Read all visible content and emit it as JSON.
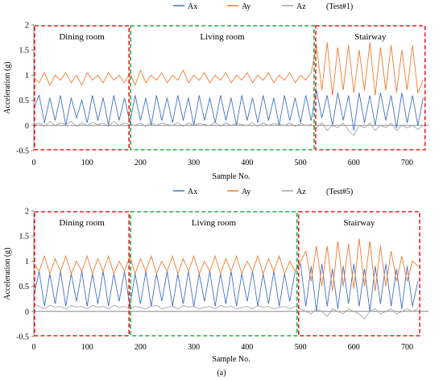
{
  "figure_label": "(a)",
  "colors": {
    "Ax": "#4472c4",
    "Ay": "#ed7d31",
    "Az": "#a5a5a5",
    "red_box": "#e02020",
    "green_box": "#2aa84a"
  },
  "chart_data": [
    {
      "type": "line",
      "title": "(Test#1)",
      "xlabel": "Sample No.",
      "ylabel": "Acceleration (g)",
      "xlim": [
        0,
        740
      ],
      "ylim": [
        -0.5,
        2
      ],
      "xticks": [
        0,
        100,
        200,
        300,
        400,
        500,
        600,
        700
      ],
      "yticks": [
        -0.5,
        0,
        0.5,
        1,
        1.5,
        2
      ],
      "yticklabels": [
        "-0.5",
        "0",
        "0.5",
        "1",
        "1.5",
        "2"
      ],
      "legend": [
        "Ax",
        "Ay",
        "Az"
      ],
      "legend_position": "top",
      "grid": false,
      "regions": [
        {
          "label": "Dining room",
          "x_start": 0,
          "x_end": 180,
          "color": "red"
        },
        {
          "label": "Living room",
          "x_start": 180,
          "x_end": 527,
          "color": "green"
        },
        {
          "label": "Stairway",
          "x_start": 527,
          "x_end": 735,
          "color": "red"
        }
      ],
      "series": [
        {
          "name": "Ax",
          "x": [
            0,
            10,
            20,
            30,
            40,
            50,
            60,
            70,
            80,
            90,
            100,
            110,
            120,
            130,
            140,
            150,
            160,
            170,
            180,
            190,
            200,
            210,
            220,
            230,
            240,
            250,
            260,
            270,
            280,
            290,
            300,
            310,
            320,
            330,
            340,
            350,
            360,
            370,
            380,
            390,
            400,
            410,
            420,
            430,
            440,
            450,
            460,
            470,
            480,
            490,
            500,
            510,
            520,
            530,
            540,
            550,
            560,
            570,
            580,
            590,
            600,
            610,
            620,
            630,
            640,
            650,
            660,
            670,
            680,
            690,
            700,
            710,
            720,
            730
          ],
          "values": [
            0.35,
            0.6,
            0.05,
            0.55,
            0.1,
            0.6,
            0.0,
            0.55,
            0.15,
            0.5,
            0.05,
            0.6,
            0.1,
            0.55,
            0.0,
            0.6,
            0.1,
            0.55,
            0.05,
            0.6,
            0.1,
            0.55,
            0.0,
            0.6,
            0.1,
            0.55,
            0.05,
            0.6,
            0.1,
            0.55,
            0.0,
            0.6,
            0.1,
            0.55,
            0.05,
            0.6,
            0.1,
            0.55,
            0.0,
            0.6,
            0.1,
            0.55,
            0.05,
            0.6,
            0.1,
            0.55,
            0.0,
            0.6,
            0.1,
            0.55,
            0.05,
            0.6,
            0.1,
            0.7,
            0.15,
            0.6,
            0.0,
            0.65,
            0.1,
            0.6,
            -0.1,
            0.65,
            0.05,
            0.6,
            0.0,
            0.65,
            0.1,
            0.6,
            -0.05,
            0.65,
            0.05,
            0.6,
            0.0,
            0.55
          ]
        },
        {
          "name": "Ay",
          "x": [
            0,
            10,
            20,
            30,
            40,
            50,
            60,
            70,
            80,
            90,
            100,
            110,
            120,
            130,
            140,
            150,
            160,
            170,
            180,
            190,
            200,
            210,
            220,
            230,
            240,
            250,
            260,
            270,
            280,
            290,
            300,
            310,
            320,
            330,
            340,
            350,
            360,
            370,
            380,
            390,
            400,
            410,
            420,
            430,
            440,
            450,
            460,
            470,
            480,
            490,
            500,
            510,
            520,
            530,
            540,
            550,
            560,
            570,
            580,
            590,
            600,
            610,
            620,
            630,
            640,
            650,
            660,
            670,
            680,
            690,
            700,
            710,
            720,
            730
          ],
          "values": [
            0.95,
            0.85,
            1.05,
            0.8,
            1.0,
            0.9,
            1.05,
            0.85,
            1.0,
            0.8,
            1.05,
            0.9,
            1.0,
            0.85,
            1.05,
            0.9,
            1.0,
            0.85,
            1.05,
            0.8,
            1.1,
            0.85,
            1.0,
            0.9,
            1.05,
            0.85,
            1.0,
            0.9,
            1.1,
            0.85,
            1.0,
            0.9,
            1.05,
            0.85,
            1.0,
            0.9,
            1.05,
            0.85,
            1.0,
            0.9,
            1.05,
            0.85,
            1.0,
            0.9,
            1.05,
            0.85,
            1.0,
            0.9,
            1.05,
            0.85,
            1.0,
            0.9,
            1.05,
            1.6,
            0.7,
            1.65,
            0.6,
            1.55,
            0.7,
            1.6,
            0.65,
            1.5,
            0.7,
            1.65,
            0.6,
            1.55,
            0.7,
            1.6,
            0.65,
            1.5,
            0.7,
            1.6,
            0.65,
            0.9
          ]
        },
        {
          "name": "Az",
          "x": [
            0,
            10,
            20,
            30,
            40,
            50,
            60,
            70,
            80,
            90,
            100,
            110,
            120,
            130,
            140,
            150,
            160,
            170,
            180,
            190,
            200,
            210,
            220,
            230,
            240,
            250,
            260,
            270,
            280,
            290,
            300,
            310,
            320,
            330,
            340,
            350,
            360,
            370,
            380,
            390,
            400,
            410,
            420,
            430,
            440,
            450,
            460,
            470,
            480,
            490,
            500,
            510,
            520,
            530,
            540,
            550,
            560,
            570,
            580,
            590,
            600,
            610,
            620,
            630,
            640,
            650,
            660,
            670,
            680,
            690,
            700,
            710,
            720,
            730
          ],
          "values": [
            0.0,
            0.05,
            -0.02,
            0.08,
            0.0,
            0.05,
            0.02,
            0.08,
            -0.02,
            0.05,
            0.0,
            0.06,
            0.02,
            0.05,
            -0.02,
            0.08,
            0.0,
            0.05,
            0.02,
            0.0,
            0.05,
            -0.02,
            0.06,
            0.0,
            0.05,
            0.02,
            0.0,
            0.06,
            -0.02,
            0.05,
            0.0,
            0.04,
            0.02,
            0.0,
            0.06,
            -0.02,
            0.05,
            0.0,
            0.04,
            0.02,
            0.0,
            0.06,
            -0.02,
            0.05,
            0.0,
            0.04,
            0.02,
            0.0,
            0.05,
            -0.02,
            0.04,
            0.0,
            0.02,
            -0.05,
            0.05,
            -0.1,
            0.0,
            -0.05,
            0.05,
            -0.1,
            -0.2,
            0.0,
            -0.05,
            0.05,
            -0.1,
            0.0,
            -0.05,
            0.05,
            -0.1,
            0.0,
            -0.05,
            0.0,
            -0.08,
            0.0
          ]
        }
      ]
    },
    {
      "type": "line",
      "title": "(Test#5)",
      "xlabel": "Sample No.",
      "ylabel": "Acceleration (g)",
      "xlim": [
        0,
        740
      ],
      "ylim": [
        -0.5,
        2
      ],
      "xticks": [
        0,
        100,
        200,
        300,
        400,
        500,
        600,
        700
      ],
      "yticks": [
        -0.5,
        0,
        0.5,
        1,
        1.5,
        2
      ],
      "yticklabels": [
        "-0.5",
        "0",
        "0.5",
        "1",
        "1.5",
        "2"
      ],
      "legend": [
        "Ax",
        "Ay",
        "Az"
      ],
      "legend_position": "top",
      "grid": false,
      "regions": [
        {
          "label": "Dining room",
          "x_start": 0,
          "x_end": 180,
          "color": "red"
        },
        {
          "label": "Living room",
          "x_start": 180,
          "x_end": 495,
          "color": "green"
        },
        {
          "label": "Stairway",
          "x_start": 495,
          "x_end": 725,
          "color": "red"
        }
      ],
      "series": [
        {
          "name": "Ax",
          "x": [
            0,
            10,
            20,
            30,
            40,
            50,
            60,
            70,
            80,
            90,
            100,
            110,
            120,
            130,
            140,
            150,
            160,
            170,
            180,
            190,
            200,
            210,
            220,
            230,
            240,
            250,
            260,
            270,
            280,
            290,
            300,
            310,
            320,
            330,
            340,
            350,
            360,
            370,
            380,
            390,
            400,
            410,
            420,
            430,
            440,
            450,
            460,
            470,
            480,
            490,
            500,
            510,
            520,
            530,
            540,
            550,
            560,
            570,
            580,
            590,
            600,
            610,
            620,
            630,
            640,
            650,
            660,
            670,
            680,
            690,
            700,
            710,
            720
          ],
          "values": [
            0.3,
            0.8,
            0.1,
            0.75,
            0.15,
            0.8,
            0.1,
            0.75,
            0.2,
            0.8,
            0.1,
            0.75,
            0.15,
            0.8,
            0.1,
            0.75,
            0.2,
            0.8,
            0.1,
            0.75,
            0.15,
            0.8,
            0.1,
            0.75,
            0.2,
            0.8,
            0.1,
            0.75,
            0.15,
            0.8,
            0.1,
            0.75,
            0.2,
            0.8,
            0.1,
            0.75,
            0.15,
            0.8,
            0.1,
            0.75,
            0.2,
            0.8,
            0.1,
            0.75,
            0.15,
            0.8,
            0.1,
            0.75,
            0.2,
            0.8,
            0.95,
            0.1,
            0.9,
            0.0,
            0.95,
            0.1,
            0.85,
            0.05,
            0.9,
            0.15,
            0.95,
            0.1,
            0.85,
            0.0,
            0.9,
            0.15,
            0.95,
            0.1,
            0.85,
            0.05,
            0.9,
            0.1,
            0.6
          ]
        },
        {
          "name": "Ay",
          "x": [
            0,
            10,
            20,
            30,
            40,
            50,
            60,
            70,
            80,
            90,
            100,
            110,
            120,
            130,
            140,
            150,
            160,
            170,
            180,
            190,
            200,
            210,
            220,
            230,
            240,
            250,
            260,
            270,
            280,
            290,
            300,
            310,
            320,
            330,
            340,
            350,
            360,
            370,
            380,
            390,
            400,
            410,
            420,
            430,
            440,
            450,
            460,
            470,
            480,
            490,
            500,
            510,
            520,
            530,
            540,
            550,
            560,
            570,
            580,
            590,
            600,
            610,
            620,
            630,
            640,
            650,
            660,
            670,
            680,
            690,
            700,
            710,
            720
          ],
          "values": [
            0.95,
            0.8,
            1.1,
            0.75,
            1.05,
            0.8,
            1.1,
            0.75,
            1.0,
            0.8,
            1.1,
            0.75,
            1.05,
            0.8,
            1.1,
            0.75,
            1.0,
            0.8,
            1.1,
            0.75,
            1.05,
            0.8,
            1.1,
            0.75,
            1.0,
            0.8,
            1.1,
            0.75,
            1.05,
            0.8,
            1.1,
            0.75,
            1.0,
            0.8,
            1.1,
            0.75,
            1.05,
            0.8,
            1.1,
            0.75,
            1.0,
            0.8,
            1.1,
            0.75,
            1.05,
            0.8,
            1.1,
            0.75,
            1.0,
            0.8,
            1.0,
            1.2,
            0.6,
            1.3,
            0.5,
            1.3,
            0.4,
            1.4,
            0.5,
            1.35,
            0.45,
            1.45,
            0.5,
            1.4,
            0.4,
            1.3,
            0.5,
            1.2,
            0.6,
            1.1,
            0.6,
            1.0,
            0.9
          ]
        },
        {
          "name": "Az",
          "x": [
            0,
            10,
            20,
            30,
            40,
            50,
            60,
            70,
            80,
            90,
            100,
            110,
            120,
            130,
            140,
            150,
            160,
            170,
            180,
            190,
            200,
            210,
            220,
            230,
            240,
            250,
            260,
            270,
            280,
            290,
            300,
            310,
            320,
            330,
            340,
            350,
            360,
            370,
            380,
            390,
            400,
            410,
            420,
            430,
            440,
            450,
            460,
            470,
            480,
            490,
            500,
            510,
            520,
            530,
            540,
            550,
            560,
            570,
            580,
            590,
            600,
            610,
            620,
            630,
            640,
            650,
            660,
            670,
            680,
            690,
            700,
            710,
            720
          ],
          "values": [
            0.15,
            0.1,
            0.05,
            0.12,
            0.08,
            0.1,
            0.05,
            0.12,
            0.08,
            0.1,
            0.05,
            0.12,
            0.08,
            0.1,
            0.05,
            0.12,
            0.08,
            0.1,
            0.05,
            0.1,
            0.08,
            0.05,
            0.1,
            0.12,
            0.05,
            0.08,
            0.1,
            0.05,
            0.12,
            0.08,
            0.1,
            0.05,
            0.08,
            0.1,
            0.05,
            0.12,
            0.08,
            0.1,
            0.05,
            0.08,
            0.1,
            0.05,
            0.12,
            0.08,
            0.1,
            0.05,
            0.08,
            0.1,
            0.05,
            0.1,
            0.05,
            0.0,
            -0.05,
            0.05,
            0.0,
            -0.1,
            0.05,
            0.0,
            -0.05,
            0.05,
            0.0,
            -0.05,
            -0.15,
            0.0,
            0.05,
            -0.05,
            0.0,
            0.05,
            -0.05,
            0.0,
            0.05,
            0.0,
            0.05
          ]
        }
      ]
    }
  ]
}
